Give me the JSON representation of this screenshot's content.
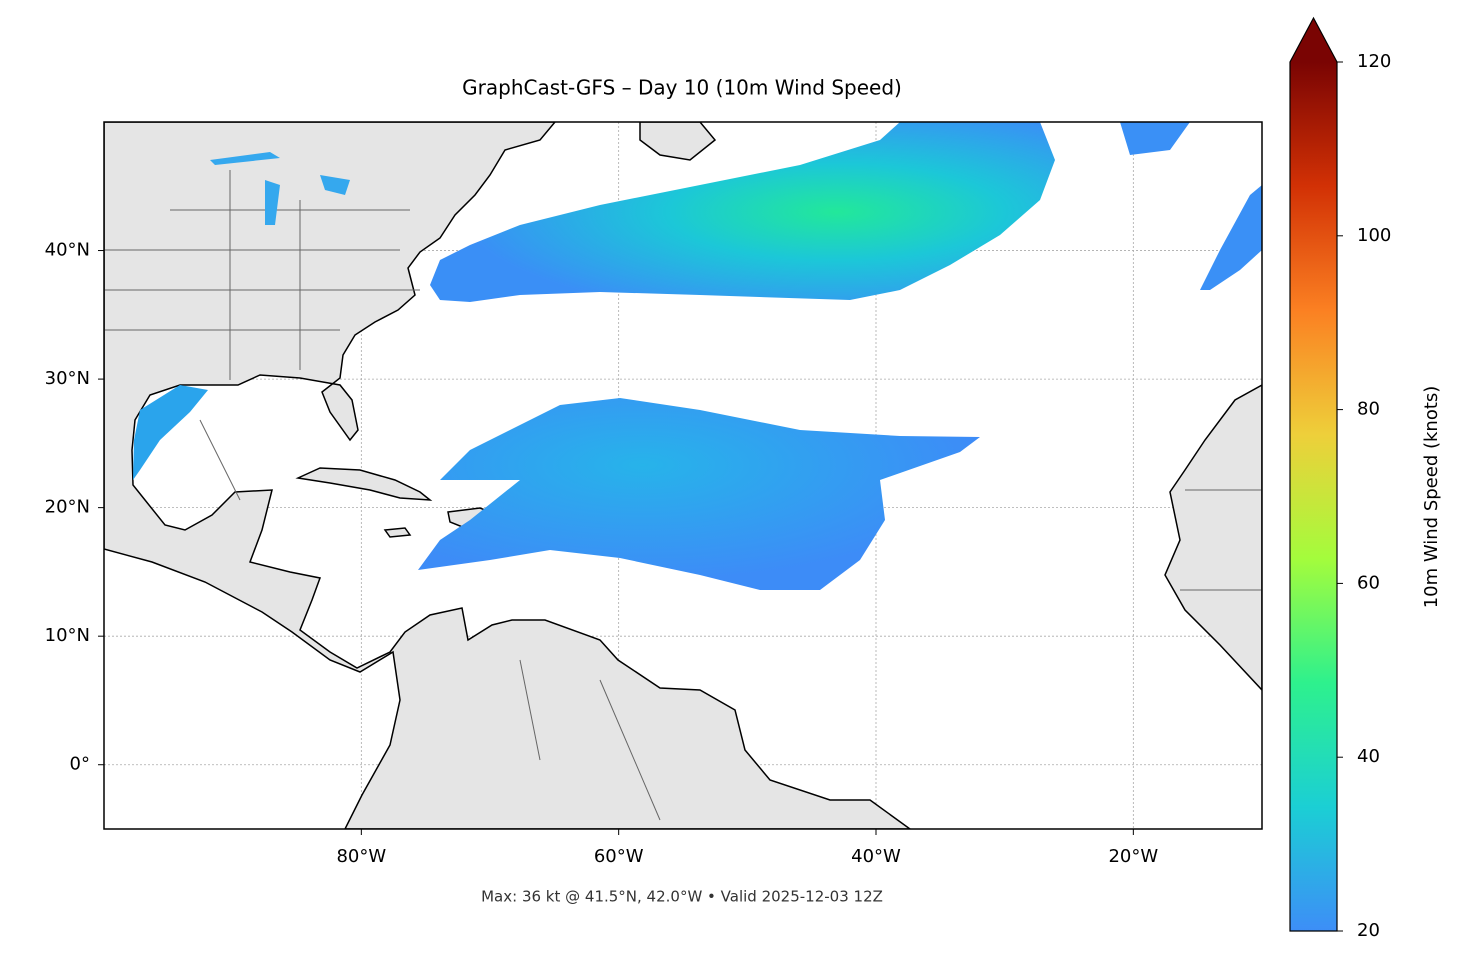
{
  "chart_data": {
    "type": "map",
    "title": "GraphCast-GFS – Day 10 (10m Wind Speed)",
    "annotation": "Max: 36 kt @ 41.5°N, 42.0°W • Valid 2025-12-03 12Z",
    "xlim": [
      -100,
      -10
    ],
    "ylim": [
      -5,
      50
    ],
    "xticks": [
      {
        "value": -80,
        "label": "80°W"
      },
      {
        "value": -60,
        "label": "60°W"
      },
      {
        "value": -40,
        "label": "40°W"
      },
      {
        "value": -20,
        "label": "20°W"
      }
    ],
    "yticks": [
      {
        "value": 0,
        "label": "0°"
      },
      {
        "value": 10,
        "label": "10°N"
      },
      {
        "value": 20,
        "label": "20°N"
      },
      {
        "value": 30,
        "label": "30°N"
      },
      {
        "value": 40,
        "label": "40°N"
      }
    ],
    "grid": true,
    "colorbar": {
      "label": "10m Wind Speed (knots)",
      "lim": [
        20,
        120
      ],
      "ticks": [
        20,
        40,
        60,
        80,
        100,
        120
      ],
      "extend": "max",
      "colors": [
        "#3d8ef7",
        "#1bcfd4",
        "#2ef18d",
        "#a4fc3c",
        "#eecf3a",
        "#fb8022",
        "#d23105",
        "#7a0403"
      ]
    }
  }
}
